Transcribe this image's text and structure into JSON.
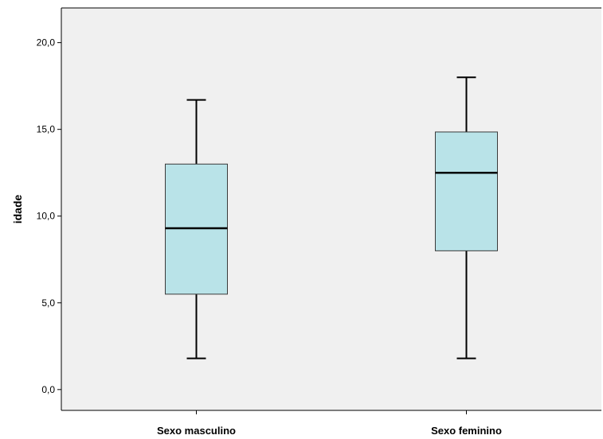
{
  "chart_data": {
    "type": "boxplot",
    "xlabel": "",
    "ylabel": "idade",
    "ylim": [
      -1.2,
      22.0
    ],
    "yticks": [
      0,
      5,
      10,
      15,
      20
    ],
    "ytick_labels": [
      "0,0",
      "5,0",
      "10,0",
      "15,0",
      "20,0"
    ],
    "categories": [
      "Sexo masculino",
      "Sexo feminino"
    ],
    "boxes": [
      {
        "category": "Sexo masculino",
        "min": 1.8,
        "q1": 5.5,
        "median": 9.3,
        "q3": 13.0,
        "max": 16.7
      },
      {
        "category": "Sexo feminino",
        "min": 1.8,
        "q1": 8.0,
        "median": 12.5,
        "q3": 14.85,
        "max": 18.0
      }
    ],
    "grid": false,
    "colors": {
      "plot_background": "#f0f0f0",
      "box_fill": "#b9e3e8",
      "box_stroke": "#3a3a3a",
      "median": "#000000",
      "whisker": "#000000"
    }
  }
}
